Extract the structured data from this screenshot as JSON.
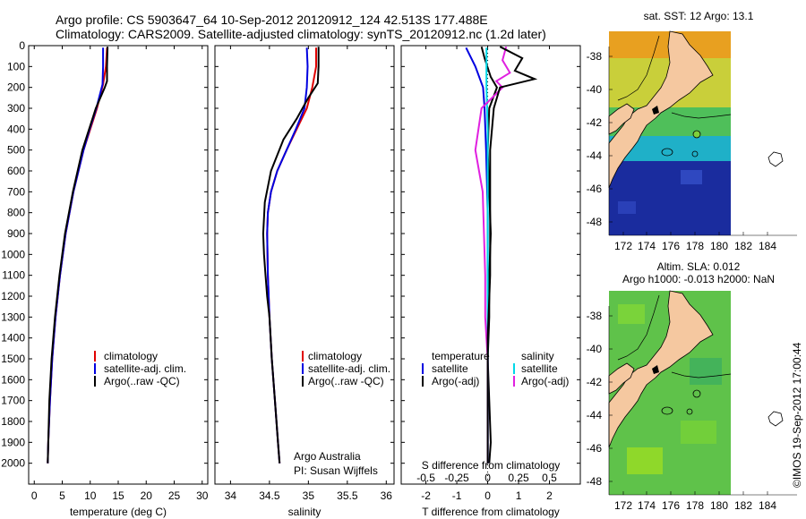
{
  "header": {
    "line1": "Argo profile: CS 5903647_64 10-Sep-2012 20120912_124 42.513S 177.488E",
    "line2": "Climatology: CARS2009. Satellite-adjusted climatology: synTS_20120912.nc (1.2d later)"
  },
  "colors": {
    "climatology": "#e00000",
    "satellite": "#0000e0",
    "argo": "#000000",
    "sat_salinity": "#00d8e8",
    "argo_salinity_diff": "#e020e0",
    "land": "#f5c8a0"
  },
  "chart_data": [
    {
      "type": "line",
      "name": "temperature",
      "xlabel": "temperature (deg C)",
      "ylabel": "",
      "xlim": [
        -1,
        31
      ],
      "ylim": [
        2100,
        0
      ],
      "xticks": [
        "0",
        "5",
        "10",
        "15",
        "20",
        "25",
        "30"
      ],
      "yticks": [
        "0",
        "100",
        "200",
        "300",
        "400",
        "500",
        "600",
        "700",
        "800",
        "900",
        "1000",
        "1100",
        "1200",
        "1300",
        "1400",
        "1500",
        "1600",
        "1700",
        "1800",
        "1900",
        "2000"
      ],
      "legend": [
        "climatology",
        "satellite-adj. clim.",
        "Argo(..raw -QC)"
      ],
      "legend_placement": "lower-center",
      "series": [
        {
          "name": "climatology",
          "depth": [
            10,
            100,
            185,
            300,
            400,
            500,
            700,
            900,
            1100,
            1300,
            1500,
            1700,
            1900,
            2000
          ],
          "values": [
            13.0,
            12.8,
            12.3,
            11.2,
            10.0,
            8.8,
            7.0,
            5.6,
            4.6,
            3.8,
            3.2,
            2.8,
            2.5,
            2.4
          ]
        },
        {
          "name": "satellite-adj. clim.",
          "depth": [
            10,
            100,
            185,
            300,
            400,
            500,
            700,
            900,
            1100,
            1300,
            1500,
            1700,
            1900,
            2000
          ],
          "values": [
            12.3,
            12.3,
            12.2,
            11.1,
            9.9,
            8.8,
            7.0,
            5.6,
            4.6,
            3.8,
            3.2,
            2.8,
            2.5,
            2.4
          ]
        },
        {
          "name": "Argo(..raw -QC)",
          "depth": [
            5,
            100,
            170,
            200,
            300,
            400,
            500,
            700,
            900,
            1100,
            1300,
            1500,
            1700,
            1900,
            2000
          ],
          "values": [
            13.1,
            13.0,
            13.0,
            12.6,
            11.0,
            9.8,
            8.6,
            6.9,
            5.5,
            4.5,
            3.7,
            3.1,
            2.7,
            2.5,
            2.4
          ]
        }
      ]
    },
    {
      "type": "line",
      "name": "salinity",
      "xlabel": "salinity",
      "xlim": [
        33.8,
        36.1
      ],
      "ylim": [
        2100,
        0
      ],
      "xticks": [
        "34",
        "34.5",
        "35",
        "35.5",
        "36"
      ],
      "legend": [
        "climatology",
        "satellite-adj. clim.",
        "Argo(..raw -QC)"
      ],
      "legend_placement": "lower-center",
      "annotation": [
        "Argo Australia",
        "PI: Susan Wijffels"
      ],
      "series": [
        {
          "name": "climatology",
          "depth": [
            10,
            100,
            200,
            300,
            400,
            500,
            600,
            700,
            800,
            900,
            1100,
            1300,
            1500,
            1700,
            1900,
            2000
          ],
          "values": [
            35.1,
            35.1,
            35.05,
            34.98,
            34.85,
            34.72,
            34.6,
            34.52,
            34.48,
            34.47,
            34.48,
            34.5,
            34.53,
            34.57,
            34.61,
            34.63
          ]
        },
        {
          "name": "satellite-adj. clim.",
          "depth": [
            10,
            100,
            200,
            300,
            400,
            500,
            600,
            700,
            800,
            900,
            1100,
            1300,
            1500,
            1700,
            1900,
            2000
          ],
          "values": [
            34.98,
            34.99,
            34.98,
            34.95,
            34.84,
            34.72,
            34.6,
            34.52,
            34.48,
            34.47,
            34.48,
            34.5,
            34.53,
            34.57,
            34.61,
            34.63
          ]
        },
        {
          "name": "Argo(..raw -QC)",
          "depth": [
            5,
            100,
            180,
            250,
            350,
            450,
            600,
            750,
            900,
            1000,
            1100,
            1200,
            1300,
            1500,
            1700,
            1900,
            2000
          ],
          "values": [
            35.13,
            35.13,
            35.12,
            35.0,
            34.85,
            34.68,
            34.52,
            34.44,
            34.42,
            34.43,
            34.45,
            34.47,
            34.5,
            34.53,
            34.57,
            34.61,
            34.63
          ]
        }
      ]
    },
    {
      "type": "line",
      "name": "difference",
      "xlabel": "T difference from climatology",
      "xlim_T": [
        -2.8,
        3.0
      ],
      "xticks_T": [
        "-2",
        "-1",
        "0",
        "1",
        "2"
      ],
      "top_xlabel": "S difference from climatology",
      "xticks_S": [
        "-0.5",
        "-0.25",
        "0",
        "0.25",
        "0.5"
      ],
      "ylim": [
        2100,
        0
      ],
      "legend_left_title": "temperature",
      "legend_right_title": "salinity",
      "legend_left": [
        "satellite",
        "Argo(-adj)"
      ],
      "legend_right": [
        "satellite",
        "Argo(-adj)"
      ],
      "series": [
        {
          "name": "temperature satellite",
          "unit": "T",
          "depth": [
            10,
            100,
            200,
            300,
            500,
            800,
            1100,
            1400,
            1700,
            2000
          ],
          "values": [
            -0.7,
            -0.4,
            -0.15,
            -0.1,
            -0.05,
            0.0,
            0.0,
            0.0,
            0.0,
            0.0
          ]
        },
        {
          "name": "temperature Argo(-adj)",
          "unit": "T",
          "depth": [
            5,
            60,
            150,
            200,
            300,
            500,
            700,
            900,
            1100,
            1300,
            1500,
            1700,
            1900,
            2000
          ],
          "values": [
            -0.2,
            -0.1,
            0.1,
            0.3,
            0.05,
            0.0,
            0.05,
            0.1,
            0.05,
            0.05,
            0.0,
            0.05,
            0.1,
            0.05
          ]
        },
        {
          "name": "salinity satellite",
          "unit": "S",
          "depth": [
            10,
            100,
            200,
            400,
            700,
            1000,
            1300,
            1600,
            1900,
            2000
          ],
          "values": [
            -0.01,
            -0.01,
            -0.01,
            0.0,
            0.0,
            0.0,
            0.0,
            0.0,
            0.0,
            0.0
          ]
        },
        {
          "name": "salinity Argo(-adj)",
          "unit": "S",
          "depth": [
            5,
            70,
            130,
            170,
            200,
            300,
            500,
            700,
            900,
            1100,
            1300,
            1500,
            1700,
            1900,
            2000
          ],
          "values": [
            0.15,
            0.12,
            0.18,
            0.07,
            0.12,
            -0.05,
            -0.1,
            -0.04,
            -0.03,
            -0.02,
            -0.02,
            0.0,
            0.0,
            0.0,
            0.0
          ]
        },
        {
          "name": "Argo S diff (black)",
          "unit": "S",
          "depth": [
            5,
            60,
            120,
            160,
            200,
            300,
            500,
            800,
            1100,
            1400,
            1700,
            2000
          ],
          "values": [
            0.1,
            0.28,
            0.22,
            0.38,
            0.1,
            0.05,
            0.02,
            0.02,
            0.02,
            0.0,
            0.0,
            0.0
          ]
        }
      ]
    }
  ],
  "maps": [
    {
      "title": "sat. SST: 12 Argo: 13.1",
      "lon_ticks": [
        "172",
        "174",
        "176",
        "178",
        "180",
        "182",
        "184"
      ],
      "lat_ticks": [
        "-38",
        "-40",
        "-42",
        "-44",
        "-46",
        "-48"
      ]
    },
    {
      "title_line1": "Altim. SLA: 0.012",
      "title_line2": "Argo h1000: -0.013 h2000: NaN",
      "lon_ticks": [
        "172",
        "174",
        "176",
        "178",
        "180",
        "182",
        "184"
      ],
      "lat_ticks": [
        "-38",
        "-40",
        "-42",
        "-44",
        "-46",
        "-48"
      ]
    }
  ],
  "footer": {
    "credit": "©IMOS 19-Sep-2012 17:00:44"
  }
}
